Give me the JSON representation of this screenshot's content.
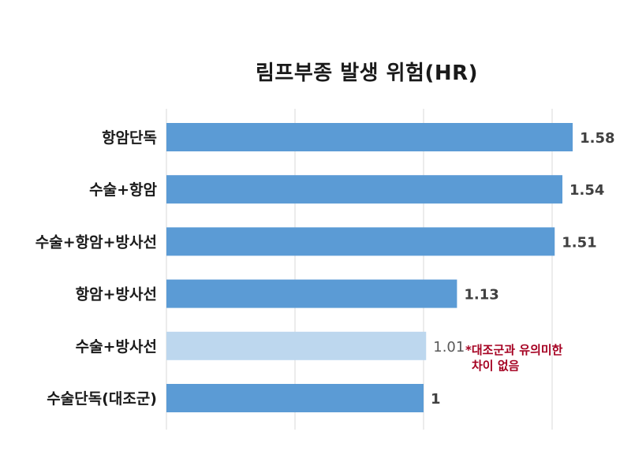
{
  "chart_data": {
    "type": "bar",
    "orientation": "horizontal",
    "title": "림프부종 발생 위험(HR)",
    "categories": [
      "항암단독",
      "수술+항암",
      "수술+항암+방사선",
      "항암+방사선",
      "수술+방사선",
      "수술단독(대조군)"
    ],
    "values": [
      1.58,
      1.54,
      1.51,
      1.13,
      1.01,
      1
    ],
    "value_labels": [
      "1.58",
      "1.54",
      "1.51",
      "1.13",
      "1.01",
      "1"
    ],
    "significant": [
      true,
      true,
      true,
      true,
      false,
      true
    ],
    "xlim": [
      0,
      1.5
    ],
    "grid": "vertical",
    "colors": {
      "significant": "#5b9bd5",
      "non_significant": "#bdd7ee",
      "annotation": "#a50021",
      "grid": "#d9d9d9"
    },
    "annotation": {
      "line1": "*대조군과 유의미한",
      "line2": "차이 없음"
    }
  }
}
